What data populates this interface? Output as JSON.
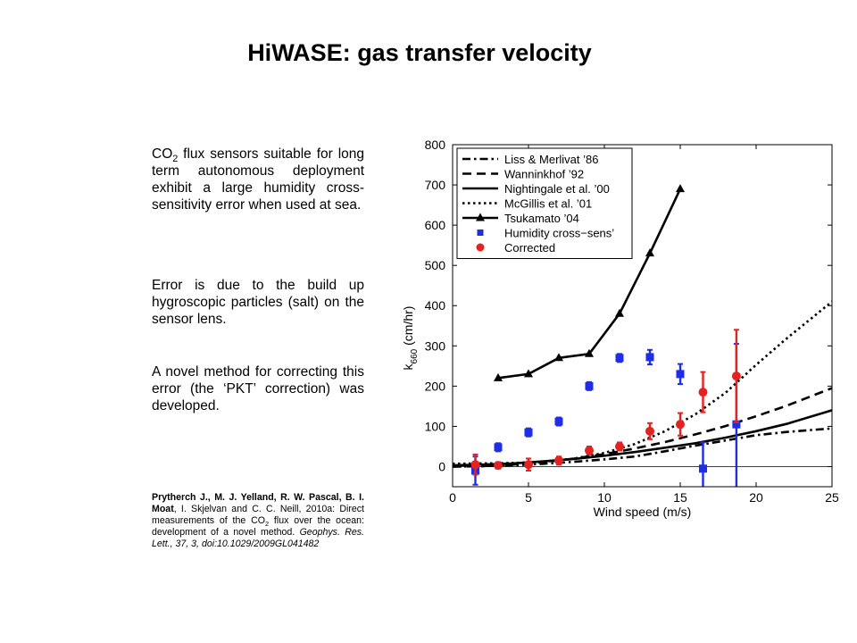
{
  "slide": {
    "title": "HiWASE: gas transfer velocity",
    "p1_pre": "CO",
    "p1_sub": "2",
    "p1_post": " flux sensors suitable for long term autonomous deployment exhibit a large humidity cross-sensitivity error when used at sea.",
    "p2": "Error is due to the build up hygroscopic particles (salt) on the sensor lens.",
    "p3": "A novel method for correcting this error (the ‘PKT’ correction) was developed.",
    "ref": {
      "authors_bold": "Prytherch J., M. J. Yelland, R. W. Pascal, B. I. Moat",
      "authors_rest": ", I. Skjelvan and C. C. Neill, 2010a: Direct measurements of the CO",
      "sub": "2",
      "rest": " flux over the ocean: development of a novel method.",
      "journal": " Geophys. Res. Lett., 37, 3,  doi:10.1029/2009GL041482"
    }
  },
  "chart_data": {
    "type": "line",
    "xlabel": "Wind speed (m/s)",
    "ylabel_main": "k",
    "ylabel_sub": "660",
    "ylabel_unit": " (cm/hr)",
    "xlim": [
      0,
      25
    ],
    "ylim": [
      -50,
      800
    ],
    "xticks": [
      0,
      5,
      10,
      15,
      20,
      25
    ],
    "yticks": [
      0,
      100,
      200,
      300,
      400,
      500,
      600,
      700,
      800
    ],
    "grid": false,
    "legend_position": "top-left",
    "curves": [
      {
        "name": "Liss & Merlivat ’86",
        "style": "dashdot",
        "x": [
          0,
          2,
          4,
          6,
          8,
          10,
          12,
          14,
          16,
          18,
          20,
          22,
          25
        ],
        "y": [
          0,
          1,
          3,
          7,
          12,
          18,
          25,
          38,
          52,
          65,
          78,
          86,
          95
        ]
      },
      {
        "name": "Wanninkhof ’92",
        "style": "dashed",
        "x": [
          0,
          2,
          4,
          6,
          8,
          10,
          12,
          14,
          16,
          18,
          20,
          22,
          25
        ],
        "y": [
          0,
          1,
          5,
          11,
          20,
          31,
          45,
          61,
          80,
          101,
          125,
          151,
          195
        ]
      },
      {
        "name": "Nightingale et al. ’00",
        "style": "solid",
        "x": [
          0,
          2,
          4,
          6,
          8,
          10,
          12,
          14,
          16,
          18,
          20,
          22,
          25
        ],
        "y": [
          3,
          5,
          8,
          13,
          19,
          27,
          36,
          47,
          58,
          72,
          88,
          106,
          140
        ]
      },
      {
        "name": "McGillis et al. ’01",
        "style": "dotted",
        "x": [
          0,
          2,
          4,
          6,
          8,
          10,
          12,
          14,
          16,
          18,
          20,
          22,
          25
        ],
        "y": [
          7,
          8,
          9,
          12,
          20,
          34,
          56,
          88,
          130,
          184,
          253,
          318,
          410
        ]
      }
    ],
    "series_marker_line": {
      "name": "Tsukamato ’04",
      "x": [
        3,
        5,
        7,
        9,
        11,
        13,
        15
      ],
      "y": [
        220,
        230,
        270,
        280,
        380,
        530,
        690
      ]
    },
    "series_points": [
      {
        "name": "Humidity cross−sens’",
        "color": "#1f2ee6",
        "marker": "square",
        "x": [
          1.5,
          3,
          5,
          7,
          9,
          11,
          13,
          15,
          16.5,
          18.7
        ],
        "y": [
          -10,
          48,
          85,
          112,
          200,
          270,
          272,
          230,
          -5,
          105
        ],
        "err": [
          35,
          10,
          10,
          10,
          10,
          10,
          18,
          25,
          65,
          200
        ]
      },
      {
        "name": "Corrected",
        "color": "#e32222",
        "marker": "circle",
        "x": [
          1.5,
          3,
          5,
          7,
          9,
          11,
          13,
          15,
          16.5,
          18.7
        ],
        "y": [
          5,
          3,
          5,
          15,
          40,
          50,
          88,
          105,
          185,
          225
        ],
        "err": [
          25,
          8,
          15,
          10,
          10,
          10,
          20,
          28,
          50,
          115
        ]
      }
    ]
  }
}
